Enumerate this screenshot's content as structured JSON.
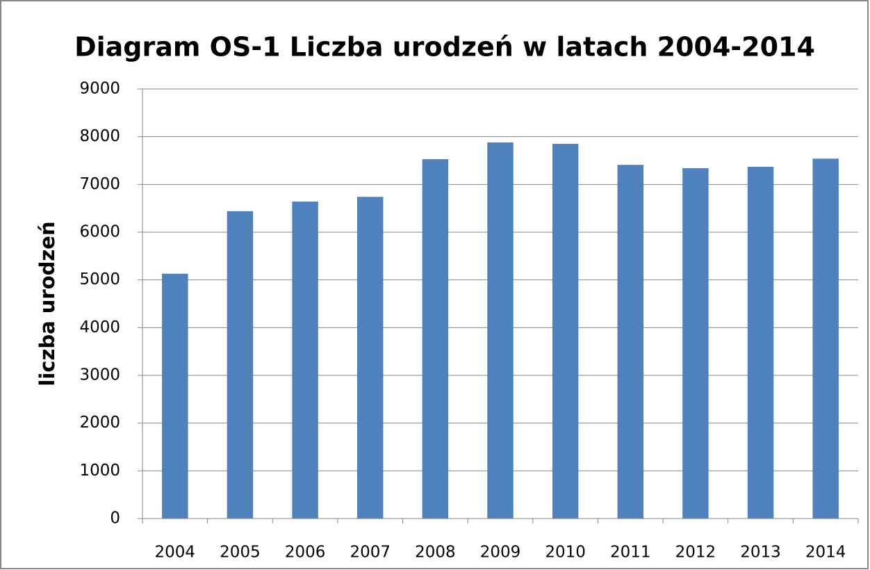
{
  "chart_data": {
    "type": "bar",
    "title": "Diagram OS-1 Liczba urodzeń w latach 2004-2014",
    "y_label": "liczba urodzeń",
    "categories": [
      "2004",
      "2005",
      "2006",
      "2007",
      "2008",
      "2009",
      "2010",
      "2011",
      "2012",
      "2013",
      "2014"
    ],
    "values": [
      5130,
      6440,
      6640,
      6740,
      7530,
      7880,
      7850,
      7410,
      7340,
      7370,
      7540
    ],
    "color": "#4f81bd",
    "ylim": [
      0,
      9000
    ],
    "yticks": [
      0,
      1000,
      2000,
      3000,
      4000,
      5000,
      6000,
      7000,
      8000,
      9000
    ],
    "grid": true
  }
}
